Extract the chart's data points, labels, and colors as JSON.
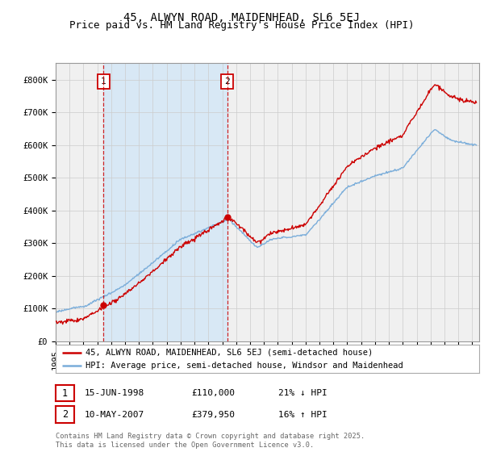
{
  "title": "45, ALWYN ROAD, MAIDENHEAD, SL6 5EJ",
  "subtitle": "Price paid vs. HM Land Registry's House Price Index (HPI)",
  "legend_line1": "45, ALWYN ROAD, MAIDENHEAD, SL6 5EJ (semi-detached house)",
  "legend_line2": "HPI: Average price, semi-detached house, Windsor and Maidenhead",
  "annotation1_date": "15-JUN-1998",
  "annotation1_price": "£110,000",
  "annotation1_hpi": "21% ↓ HPI",
  "annotation2_date": "10-MAY-2007",
  "annotation2_price": "£379,950",
  "annotation2_hpi": "16% ↑ HPI",
  "footer": "Contains HM Land Registry data © Crown copyright and database right 2025.\nThis data is licensed under the Open Government Licence v3.0.",
  "sale1_year": 1998.45,
  "sale1_value": 110000,
  "sale2_year": 2007.36,
  "sale2_value": 379950,
  "ylim_min": 0,
  "ylim_max": 850000,
  "xlim_min": 1995,
  "xlim_max": 2025.5,
  "line_color_sold": "#cc0000",
  "line_color_hpi": "#7aadda",
  "shade_color": "#d8e8f5",
  "background_color": "#f0f0f0",
  "grid_color": "#cccccc",
  "title_fontsize": 10,
  "subtitle_fontsize": 9,
  "axis_fontsize": 7.5
}
